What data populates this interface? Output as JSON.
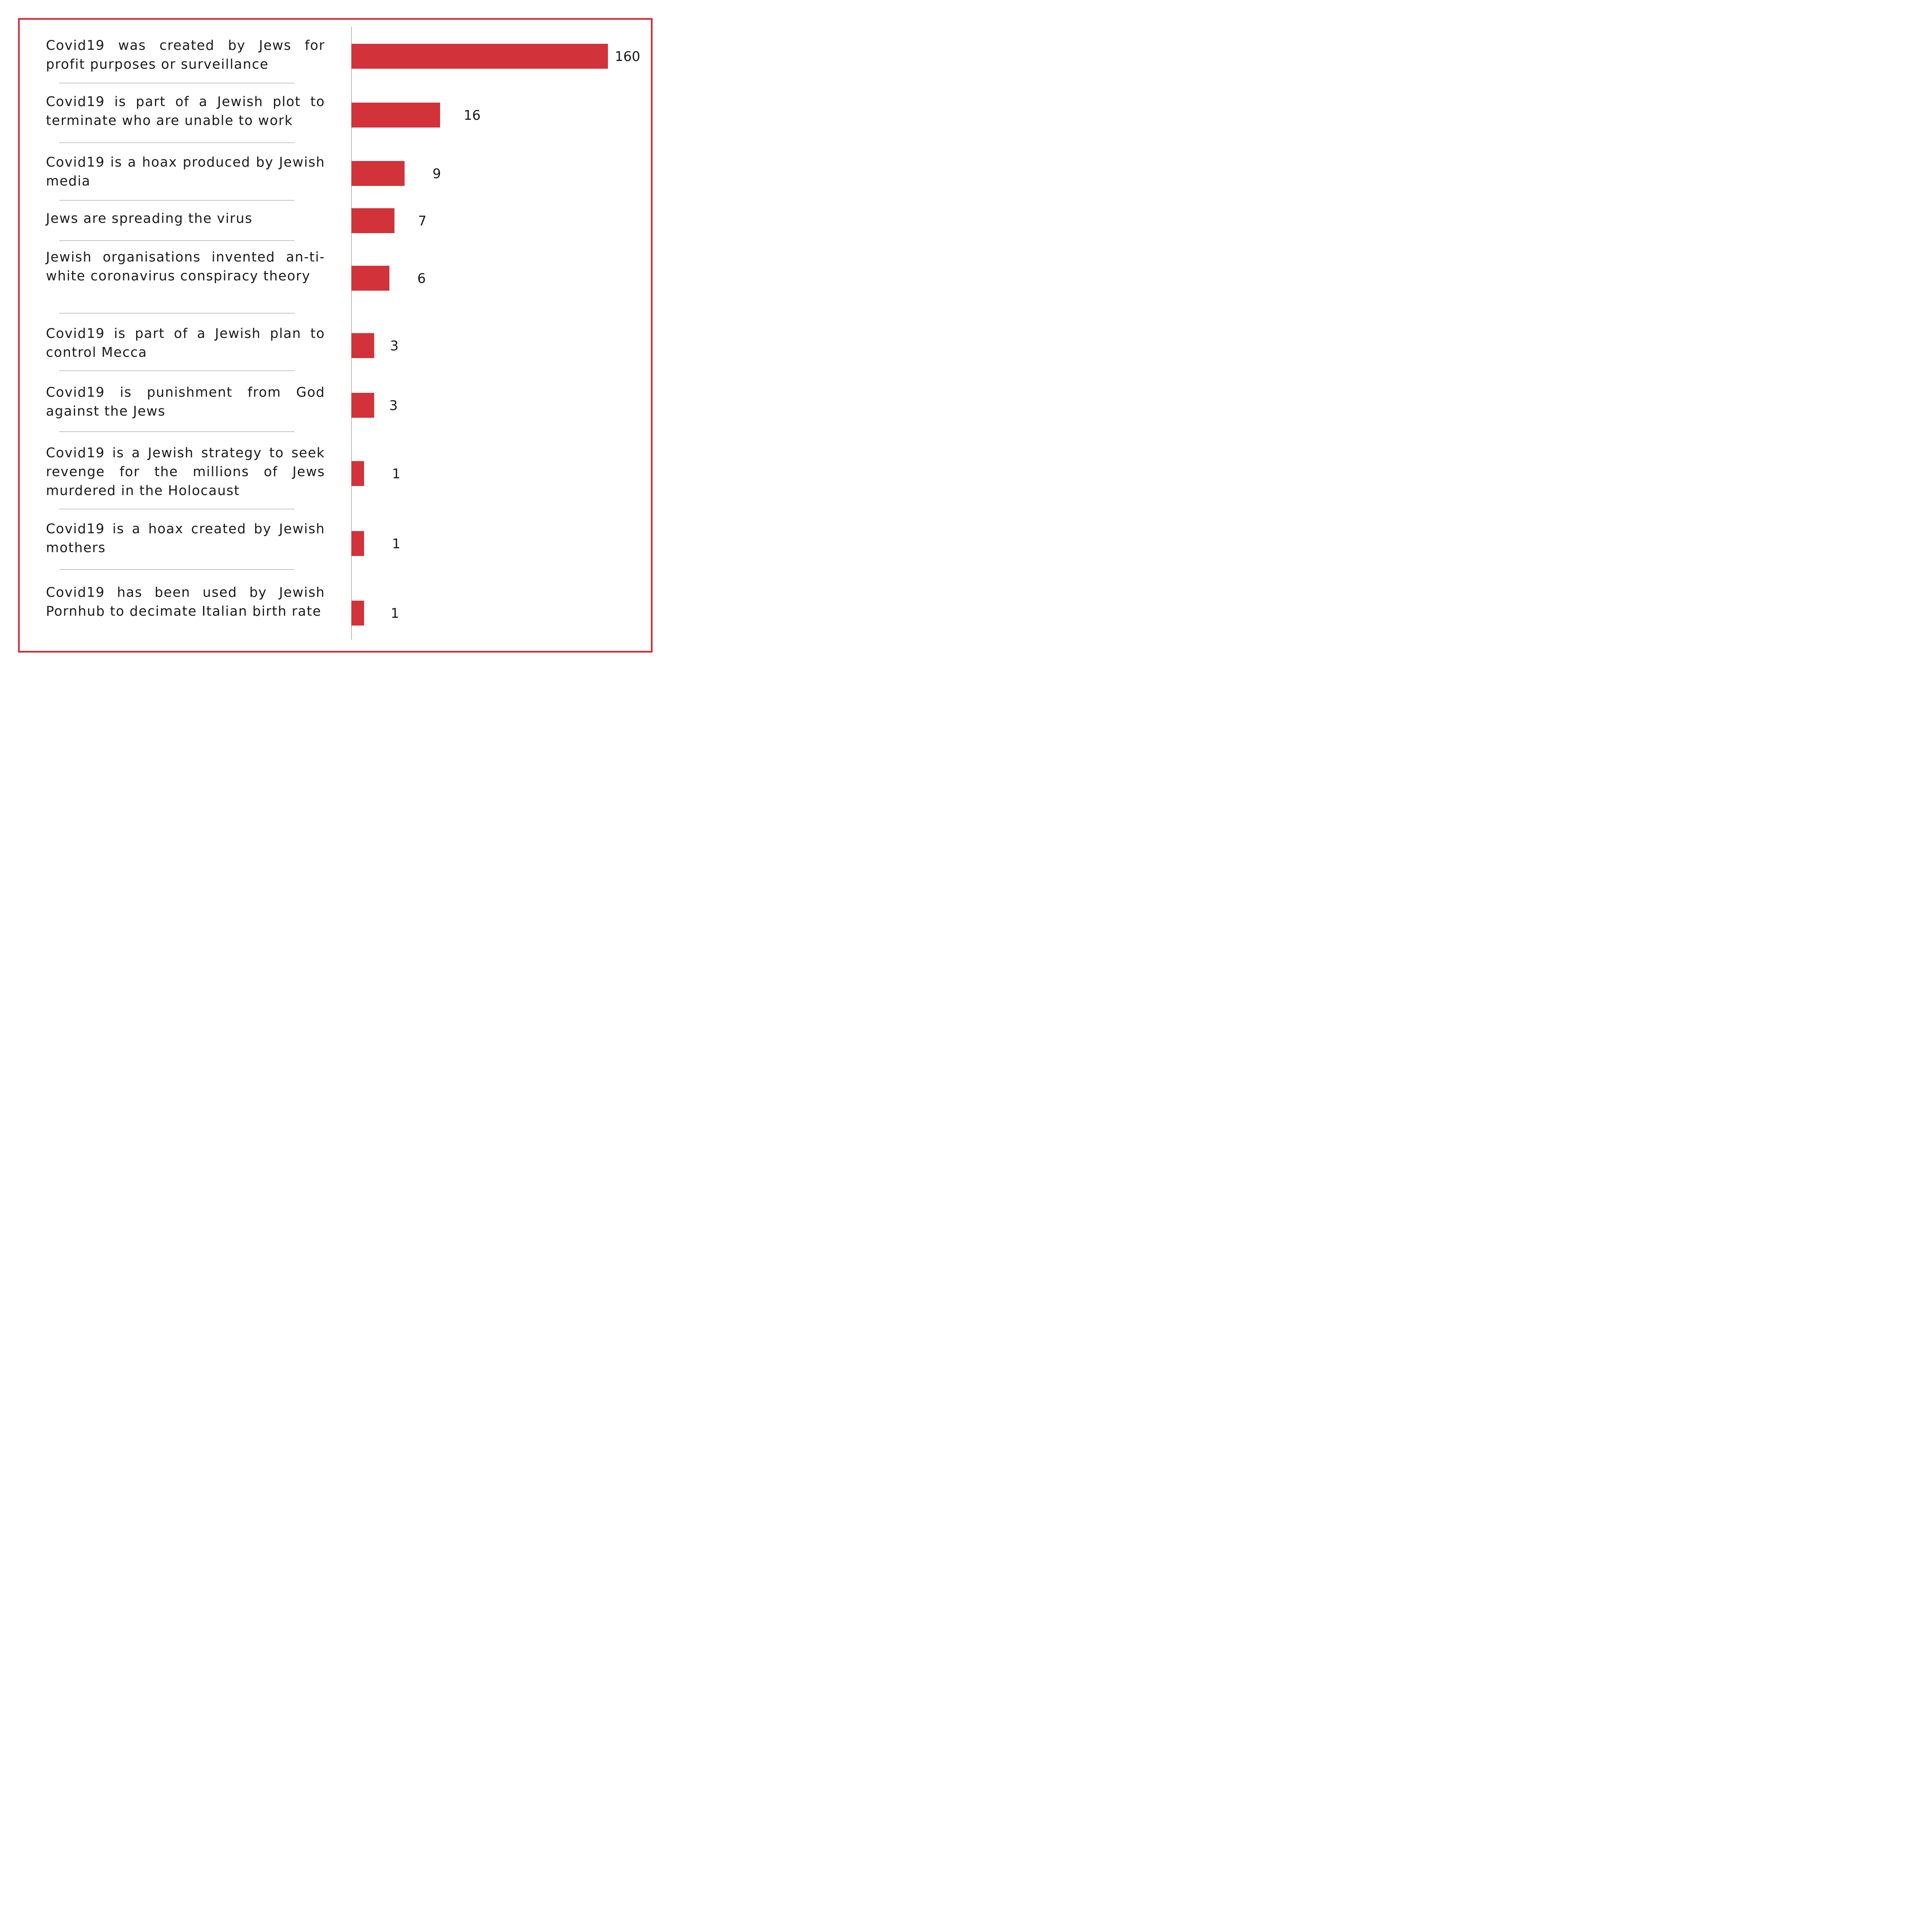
{
  "colors": {
    "bar": "#d2323a",
    "frame": "#d2323a"
  },
  "chart_data": {
    "type": "bar",
    "orientation": "horizontal",
    "categories": [
      "Covid19 was created by Jews for profit purposes or surveillance",
      "Covid19 is part of a Jewish plot to terminate who are unable to work",
      "Covid19 is a hoax produced by Jewish media",
      "Jews are spreading the virus",
      "Jewish organisations invented an-ti-white coronavirus conspiracy theory",
      "Covid19 is part of a Jewish plan to control Mecca",
      "Covid19 is punishment from God against the Jews",
      "Covid19 is a Jewish strategy to seek revenge for the millions of Jews murdered in the Holocaust",
      "Covid19 is a hoax created by Jewish mothers",
      "Covid19 has been used by Jewish Pornhub to decimate Italian birth rate"
    ],
    "values": [
      160,
      16,
      9,
      7,
      6,
      3,
      3,
      1,
      1,
      1
    ],
    "title": "",
    "xlabel": "",
    "ylabel": "",
    "grid": false,
    "legend": null
  }
}
